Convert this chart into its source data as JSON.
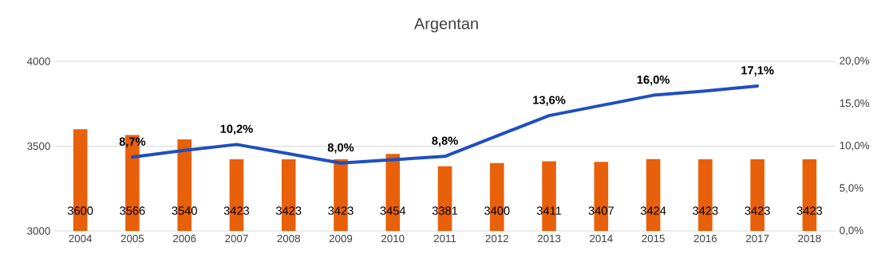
{
  "chart_data": {
    "type": "bar",
    "title": "Argentan",
    "categories": [
      "2004",
      "2005",
      "2006",
      "2007",
      "2008",
      "2009",
      "2010",
      "2011",
      "2012",
      "2013",
      "2014",
      "2015",
      "2016",
      "2017",
      "2018"
    ],
    "series": [
      {
        "color": "#e8600a",
        "values": [
          3600,
          3566,
          3540,
          3423,
          3423,
          3423,
          3454,
          3381,
          3400,
          3411,
          3407,
          3424,
          3423,
          3423,
          3423
        ],
        "value_labels": [
          "3600",
          "3566",
          "3540",
          "3423",
          "3423",
          "3423",
          "3454",
          "3381",
          "3400",
          "3411",
          "3407",
          "3424",
          "3423",
          "3423",
          "3423"
        ]
      },
      {
        "type": "line",
        "axis": "y2",
        "color": "#1f4fbf",
        "values": [
          null,
          8.7,
          9.5,
          10.2,
          9.1,
          8.0,
          8.4,
          8.8,
          11.2,
          13.6,
          14.8,
          16.0,
          16.5,
          17.1,
          null
        ],
        "value_labels": [
          null,
          "8,7%",
          null,
          "10,2%",
          null,
          "8,0%",
          null,
          "8,8%",
          null,
          "13,6%",
          null,
          "16,0%",
          null,
          "17,1%",
          null
        ]
      }
    ],
    "ylim": [
      3000,
      4000
    ],
    "yticks": [
      3000,
      3500,
      4000
    ],
    "y2lim": [
      0,
      20
    ],
    "y2ticks": [
      {
        "value": 0,
        "label": "0,0%"
      },
      {
        "value": 5,
        "label": "5,0%"
      },
      {
        "value": 10,
        "label": "10,0%"
      },
      {
        "value": 15,
        "label": "15,0%"
      },
      {
        "value": 20,
        "label": "20,0%"
      }
    ],
    "grid": "y"
  }
}
